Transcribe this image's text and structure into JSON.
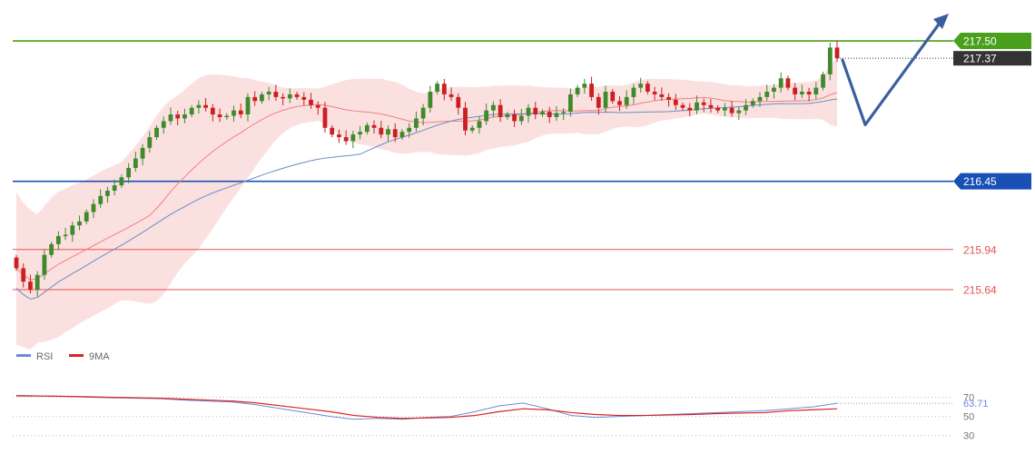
{
  "chart_data": [
    {
      "type": "candlestick",
      "title": "",
      "xlabel": "",
      "ylabel": "",
      "ylim": [
        215.28,
        217.67
      ],
      "colors": {
        "up": "#3e8a2c",
        "down": "#cc1f1f",
        "bollinger_fill": "#f7c6c6",
        "middle_ma": "#f08080",
        "long_ma": "#6b8cc8",
        "arrow": "#3b5f9e"
      },
      "horizontal_levels": [
        {
          "value": 217.5,
          "label": "217.50",
          "color": "#4aa01c",
          "kind": "resistance"
        },
        {
          "value": 217.37,
          "label": "217.37",
          "color": "#333333",
          "kind": "last-price"
        },
        {
          "value": 216.45,
          "label": "216.45",
          "color": "#1a4fb5",
          "kind": "pivot"
        },
        {
          "value": 215.94,
          "label": "215.94",
          "color": "#e85050",
          "kind": "support"
        },
        {
          "value": 215.64,
          "label": "215.64",
          "color": "#e85050",
          "kind": "support"
        }
      ],
      "candles_close": [
        215.8,
        215.7,
        215.64,
        215.75,
        215.9,
        215.98,
        216.04,
        216.05,
        216.12,
        216.15,
        216.22,
        216.28,
        216.34,
        216.38,
        216.42,
        216.48,
        216.55,
        216.62,
        216.7,
        216.78,
        216.85,
        216.9,
        216.95,
        216.92,
        216.95,
        217.0,
        217.02,
        217.0,
        216.95,
        216.93,
        216.94,
        216.98,
        216.95,
        217.08,
        217.05,
        217.1,
        217.12,
        217.08,
        217.07,
        217.1,
        217.08,
        217.06,
        217.02,
        217.0,
        216.85,
        216.8,
        216.78,
        216.75,
        216.8,
        216.82,
        216.87,
        216.85,
        216.8,
        216.84,
        216.78,
        216.82,
        216.85,
        216.92,
        217.0,
        217.12,
        217.18,
        217.1,
        217.08,
        217.0,
        216.83,
        216.85,
        216.9,
        216.98,
        217.02,
        216.93,
        216.95,
        216.9,
        216.94,
        217.0,
        216.95,
        216.97,
        216.93,
        216.96,
        216.97,
        217.1,
        217.15,
        217.18,
        217.08,
        217.0,
        217.12,
        217.05,
        217.02,
        217.08,
        217.15,
        217.18,
        217.12,
        217.1,
        217.08,
        217.06,
        217.02,
        217.0,
        216.98,
        217.04,
        217.02,
        217.0,
        216.98,
        217.0,
        216.96,
        216.98,
        217.02,
        217.05,
        217.08,
        217.12,
        217.15,
        217.22,
        217.15,
        217.1,
        217.12,
        217.1,
        217.15,
        217.25,
        217.45,
        217.37
      ],
      "annotations": [
        "projection-arrow-up"
      ]
    },
    {
      "type": "line",
      "title": "",
      "ylim": [
        25,
        80
      ],
      "ticks": [
        "70",
        "50",
        "30"
      ],
      "tick_values": [
        70,
        50,
        30
      ],
      "legend_position": "top-left",
      "series": [
        {
          "name": "RSI",
          "color": "#6b8cd8",
          "last_value": "63.71",
          "values": [
            72,
            71.5,
            71,
            70,
            69.5,
            69,
            68.5,
            67,
            66,
            65,
            62,
            58,
            54,
            50,
            47,
            48,
            47,
            49,
            50,
            55,
            61,
            64,
            58,
            51,
            49,
            50,
            51,
            52,
            53,
            54,
            55,
            56,
            58,
            60,
            63.71
          ]
        },
        {
          "name": "9MA",
          "color": "#dd2222",
          "values": [
            71.5,
            71.3,
            71,
            70.5,
            70,
            69.5,
            69,
            68,
            67,
            66,
            64,
            61,
            58,
            55,
            51,
            49,
            48,
            48.5,
            49,
            51,
            55,
            58,
            57,
            54,
            52,
            51,
            51,
            51.5,
            52,
            53,
            53.5,
            54,
            56,
            57,
            58
          ]
        }
      ]
    }
  ]
}
